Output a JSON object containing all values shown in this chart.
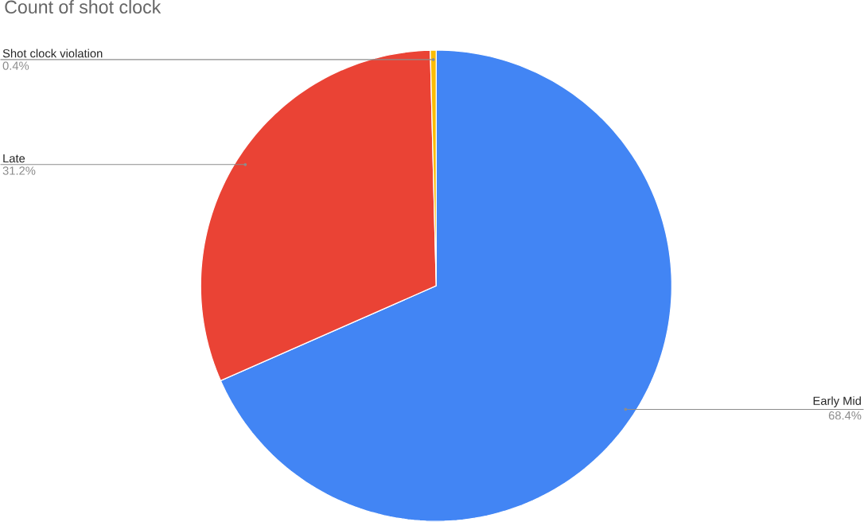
{
  "chart_data": {
    "type": "pie",
    "title": "Count of shot clock",
    "categories": [
      "Early Mid",
      "Late",
      "Shot clock violation"
    ],
    "values": [
      68.4,
      31.2,
      0.4
    ],
    "value_labels": [
      "68.4%",
      "31.2%",
      "0.4%"
    ],
    "colors": [
      "#4285f4",
      "#ea4335",
      "#fbbc04"
    ]
  }
}
